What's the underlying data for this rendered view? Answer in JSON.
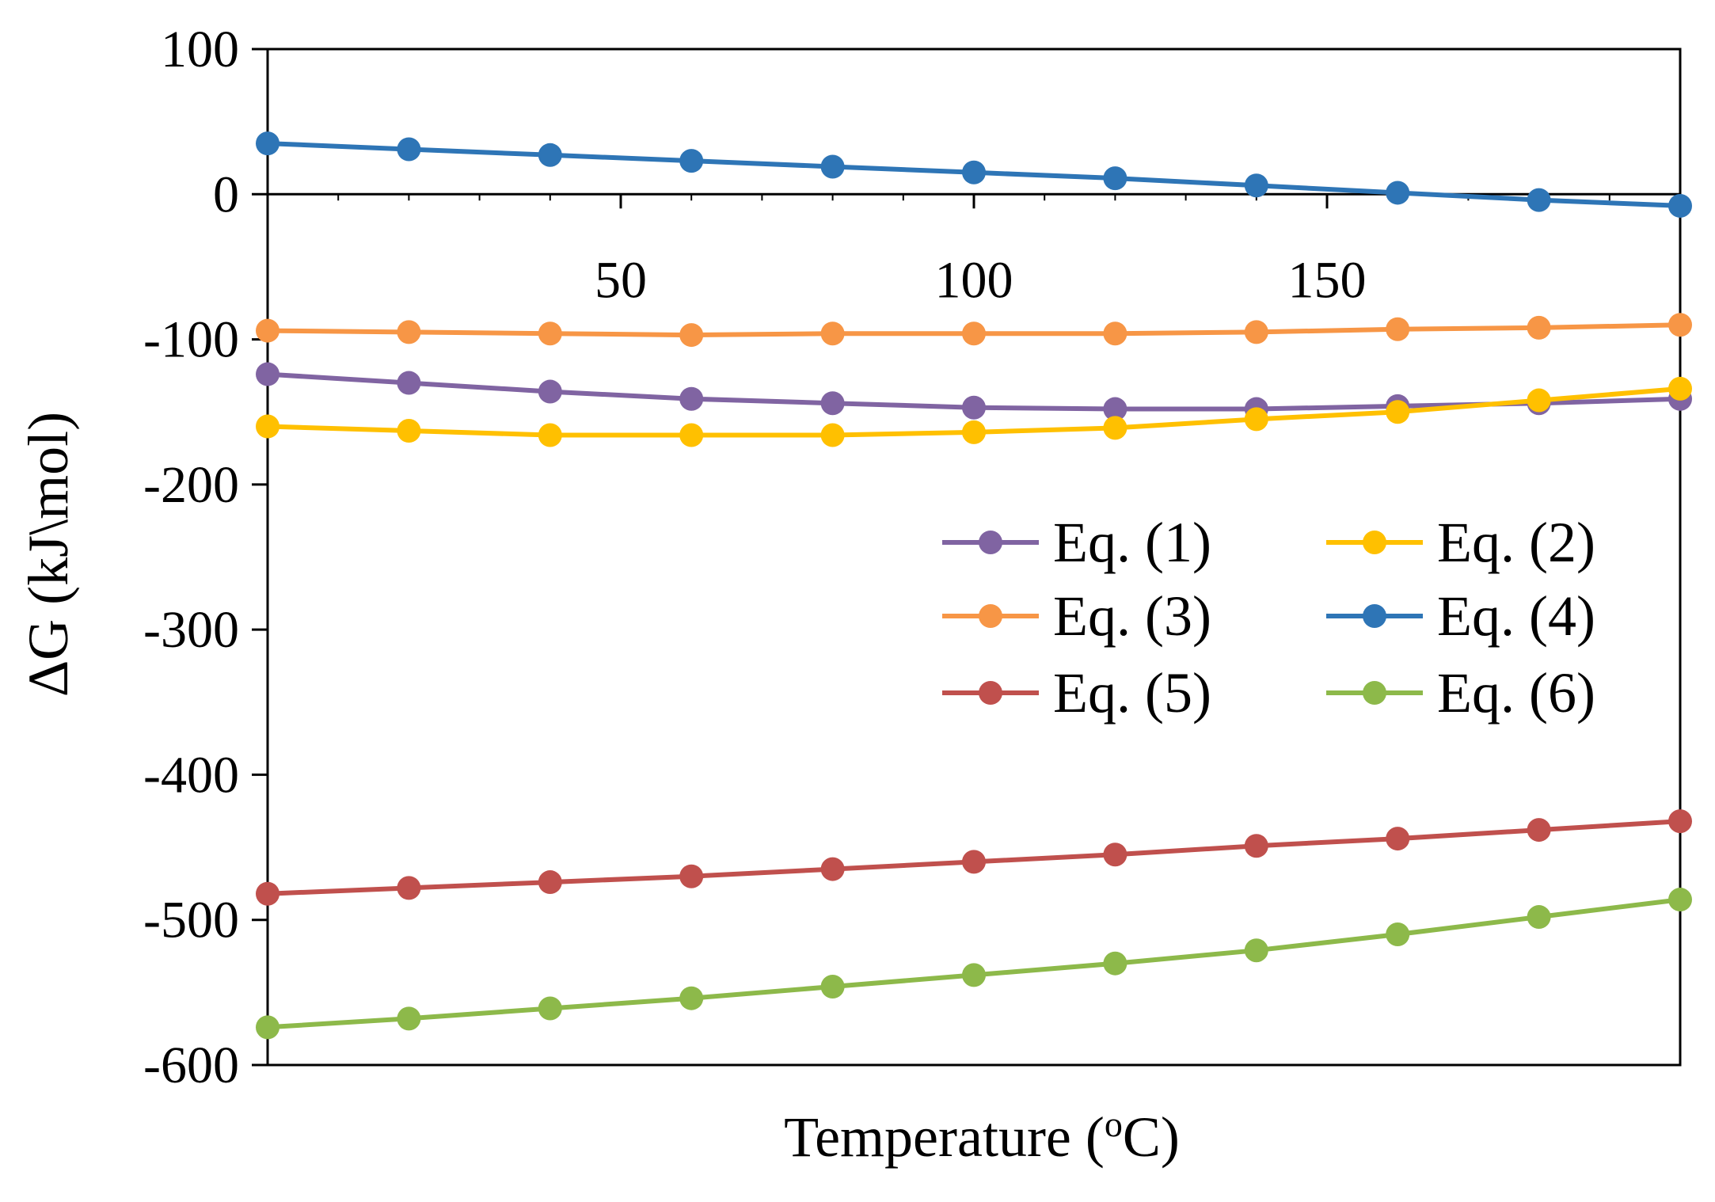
{
  "chart_data": {
    "type": "line",
    "title": "",
    "xlabel": "Temperature  (°C)",
    "xlabel_parts": {
      "prefix": "Temperature  (",
      "sup": "o",
      "suffix": "C)"
    },
    "ylabel": "ΔG (kJ\\mol)",
    "xlim": [
      0,
      200
    ],
    "ylim": [
      -600,
      100
    ],
    "xticks": [
      50,
      100,
      150
    ],
    "yticks": [
      100,
      0,
      -100,
      -200,
      -300,
      -400,
      -500,
      -600
    ],
    "grid": false,
    "legend_position": "center-right",
    "x": [
      0,
      20,
      40,
      60,
      80,
      100,
      120,
      140,
      160,
      180,
      200
    ],
    "series": [
      {
        "name": "Eq. (1)",
        "color": "#8064A2",
        "values": [
          -124,
          -130,
          -136,
          -141,
          -144,
          -147,
          -148,
          -148,
          -146,
          -144,
          -141
        ]
      },
      {
        "name": "Eq. (2)",
        "color": "#FFC000",
        "values": [
          -160,
          -163,
          -166,
          -166,
          -166,
          -164,
          -161,
          -155,
          -150,
          -142,
          -134
        ]
      },
      {
        "name": "Eq. (3)",
        "color": "#F79646",
        "values": [
          -94,
          -95,
          -96,
          -97,
          -96,
          -96,
          -96,
          -95,
          -93,
          -92,
          -90
        ]
      },
      {
        "name": "Eq. (4)",
        "color": "#2E75B6",
        "values": [
          35,
          31,
          27,
          23,
          19,
          15,
          11,
          6,
          1,
          -4,
          -8
        ]
      },
      {
        "name": "Eq. (5)",
        "color": "#C0504D",
        "values": [
          -482,
          -478,
          -474,
          -470,
          -465,
          -460,
          -455,
          -449,
          -444,
          -438,
          -432
        ]
      },
      {
        "name": "Eq. (6)",
        "color": "#8DB94A",
        "values": [
          -574,
          -568,
          -561,
          -554,
          -546,
          -538,
          -530,
          -521,
          -510,
          -498,
          -486
        ]
      }
    ]
  }
}
